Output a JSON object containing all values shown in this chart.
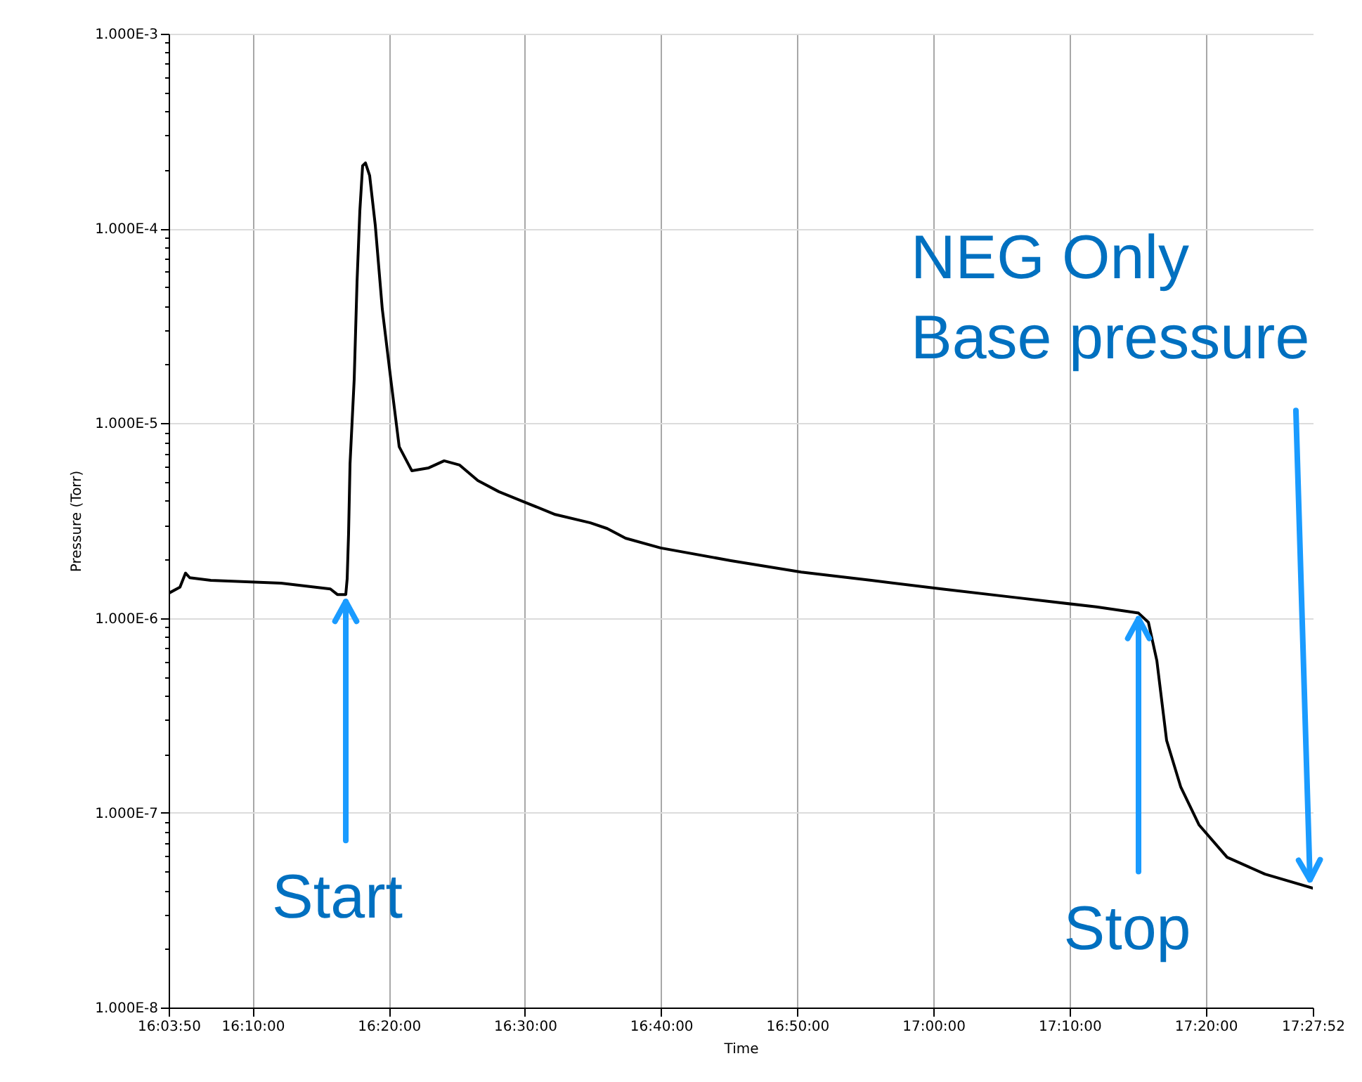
{
  "chart_data": {
    "type": "line",
    "xlabel": "Time",
    "ylabel": "Pressure (Torr)",
    "log": "y",
    "grid": true,
    "xlim": [
      16.06389,
      17.46444
    ],
    "xticks": [
      {
        "value": 16.06389,
        "label": "16:03:50"
      },
      {
        "value": 16.16667,
        "label": "16:10:00"
      },
      {
        "value": 16.33333,
        "label": "16:20:00"
      },
      {
        "value": 16.5,
        "label": "16:30:00"
      },
      {
        "value": 16.66667,
        "label": "16:40:00"
      },
      {
        "value": 16.83333,
        "label": "16:50:00"
      },
      {
        "value": 17.0,
        "label": "17:00:00"
      },
      {
        "value": 17.16667,
        "label": "17:10:00"
      },
      {
        "value": 17.33333,
        "label": "17:20:00"
      },
      {
        "value": 17.46444,
        "label": "17:27:52"
      }
    ],
    "ylim": [
      1e-08,
      0.001
    ],
    "yticks": [
      {
        "value": 1e-08,
        "label": "1.000E-8"
      },
      {
        "value": 2e-08,
        "label": null
      },
      {
        "value": 3e-08,
        "label": null
      },
      {
        "value": 4e-08,
        "label": null
      },
      {
        "value": 5e-08,
        "label": null
      },
      {
        "value": 6e-08,
        "label": null
      },
      {
        "value": 7e-08,
        "label": null
      },
      {
        "value": 8e-08,
        "label": null
      },
      {
        "value": 9e-08,
        "label": null
      },
      {
        "value": 1e-07,
        "label": "1.000E-7"
      },
      {
        "value": 2e-07,
        "label": null
      },
      {
        "value": 3e-07,
        "label": null
      },
      {
        "value": 4e-07,
        "label": null
      },
      {
        "value": 5e-07,
        "label": null
      },
      {
        "value": 6e-07,
        "label": null
      },
      {
        "value": 7e-07,
        "label": null
      },
      {
        "value": 8e-07,
        "label": null
      },
      {
        "value": 9e-07,
        "label": null
      },
      {
        "value": 1e-06,
        "label": "1.000E-6"
      },
      {
        "value": 2e-06,
        "label": null
      },
      {
        "value": 3e-06,
        "label": null
      },
      {
        "value": 4e-06,
        "label": null
      },
      {
        "value": 5e-06,
        "label": null
      },
      {
        "value": 6e-06,
        "label": null
      },
      {
        "value": 7e-06,
        "label": null
      },
      {
        "value": 8e-06,
        "label": null
      },
      {
        "value": 9e-06,
        "label": null
      },
      {
        "value": 1e-05,
        "label": "1.000E-5"
      },
      {
        "value": 2e-05,
        "label": null
      },
      {
        "value": 3e-05,
        "label": null
      },
      {
        "value": 4e-05,
        "label": null
      },
      {
        "value": 5e-05,
        "label": null
      },
      {
        "value": 6e-05,
        "label": null
      },
      {
        "value": 7e-05,
        "label": null
      },
      {
        "value": 8e-05,
        "label": null
      },
      {
        "value": 9e-05,
        "label": null
      },
      {
        "value": 0.0001,
        "label": "1.000E-4"
      },
      {
        "value": 0.0002,
        "label": null
      },
      {
        "value": 0.0003,
        "label": null
      },
      {
        "value": 0.0004,
        "label": null
      },
      {
        "value": 0.0005,
        "label": null
      },
      {
        "value": 0.0006,
        "label": null
      },
      {
        "value": 0.0007,
        "label": null
      },
      {
        "value": 0.0008,
        "label": null
      },
      {
        "value": 0.0009,
        "label": null
      },
      {
        "value": 0.001,
        "label": "1.000E-3"
      }
    ],
    "x": [
      16.0639,
      16.0777,
      16.0845,
      16.0897,
      16.1155,
      16.2015,
      16.2618,
      16.2704,
      16.2807,
      16.2824,
      16.2841,
      16.2859,
      16.291,
      16.2945,
      16.2979,
      16.3013,
      16.3048,
      16.3099,
      16.3168,
      16.3254,
      16.3358,
      16.3461,
      16.3616,
      16.3822,
      16.4011,
      16.4201,
      16.4424,
      16.4682,
      16.5026,
      16.5371,
      16.5801,
      16.6007,
      16.6231,
      16.6661,
      16.7521,
      16.8382,
      16.9242,
      17.0102,
      17.0963,
      17.1995,
      17.2511,
      17.2632,
      17.2735,
      17.2855,
      17.3027,
      17.3251,
      17.3595,
      17.4059,
      17.4644
    ],
    "series": [
      {
        "color": "#000000",
        "values": [
          1.34e-06,
          1.44e-06,
          1.7e-06,
          1.61e-06,
          1.56e-06,
          1.51e-06,
          1.41e-06,
          1.32e-06,
          1.32e-06,
          1.59e-06,
          2.7e-06,
          6.19e-06,
          1.68e-05,
          5.37e-05,
          0.000123,
          0.00021,
          0.000217,
          0.000187,
          0.000104,
          3.85e-05,
          1.68e-05,
          7.57e-06,
          5.7e-06,
          5.9e-06,
          6.41e-06,
          6.1e-06,
          5.08e-06,
          4.45e-06,
          3.89e-06,
          3.4e-06,
          3.08e-06,
          2.88e-06,
          2.57e-06,
          2.29e-06,
          1.97e-06,
          1.72e-06,
          1.56e-06,
          1.41e-06,
          1.28e-06,
          1.14e-06,
          1.06e-06,
          9.5e-07,
          6.05e-07,
          2.35e-07,
          1.36e-07,
          8.67e-08,
          5.91e-08,
          4.84e-08,
          4.1e-08
        ]
      }
    ],
    "annotations": [
      {
        "text": "Start",
        "x": 16.2807,
        "y": 1.32e-06
      },
      {
        "text": "Stop",
        "x": 17.2511,
        "y": 1.06e-06
      },
      {
        "text": "NEG Only\nBase pressure",
        "x": 17.4644,
        "y": 4.1e-08
      }
    ]
  }
}
